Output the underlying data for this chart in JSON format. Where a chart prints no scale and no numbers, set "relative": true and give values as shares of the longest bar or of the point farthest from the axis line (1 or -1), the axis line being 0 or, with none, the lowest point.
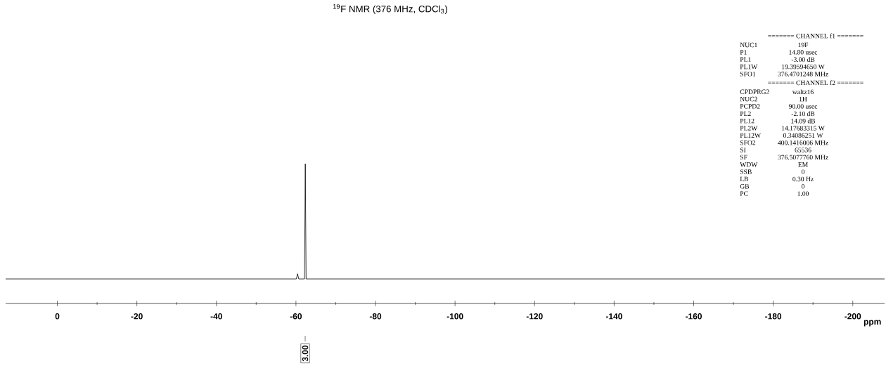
{
  "chart_data": {
    "type": "line",
    "title": "$^{19}$F NMR (376 MHz, CDCl$_{3}$)",
    "xlabel": "ppm",
    "relative": true,
    "x": [
      13,
      -60.1,
      -60.4,
      -60.7,
      -62.15,
      -62.35,
      -62.55,
      -208
    ],
    "values": [
      0,
      0,
      0.045,
      0,
      0,
      1,
      0,
      0
    ],
    "color": "#000000",
    "xlim": [
      13,
      -208
    ],
    "xticks": [
      0,
      -20,
      -40,
      -60,
      -80,
      -100,
      -120,
      -140,
      -160,
      -180,
      -200
    ],
    "annotations": [
      "3.00",
      "======= CHANNEL f1 =======",
      "NUC1",
      "19F",
      "P1",
      "14.80 usec",
      "PL1",
      "-3.00 dB",
      "PL1W",
      "19.39594650 W",
      "SFO1",
      "376.4701248 MHz",
      "======= CHANNEL f2 =======",
      "CPDPRG2",
      "waltz16",
      "NUC2",
      "1H",
      "PCPD2",
      "90.00 usec",
      "PL2",
      "-2.10 dB",
      "PL12",
      "14.09 dB",
      "PL2W",
      "14.17683315 W",
      "PL12W",
      "0.34086251 W",
      "SFO2",
      "400.1416006 MHz",
      "SI",
      "65536",
      "SF",
      "376.5077760 MHz",
      "WDW",
      "EM",
      "SSB",
      "0",
      "LB",
      "0.30 Hz",
      "GB",
      "0",
      "PC",
      "1.00"
    ]
  }
}
